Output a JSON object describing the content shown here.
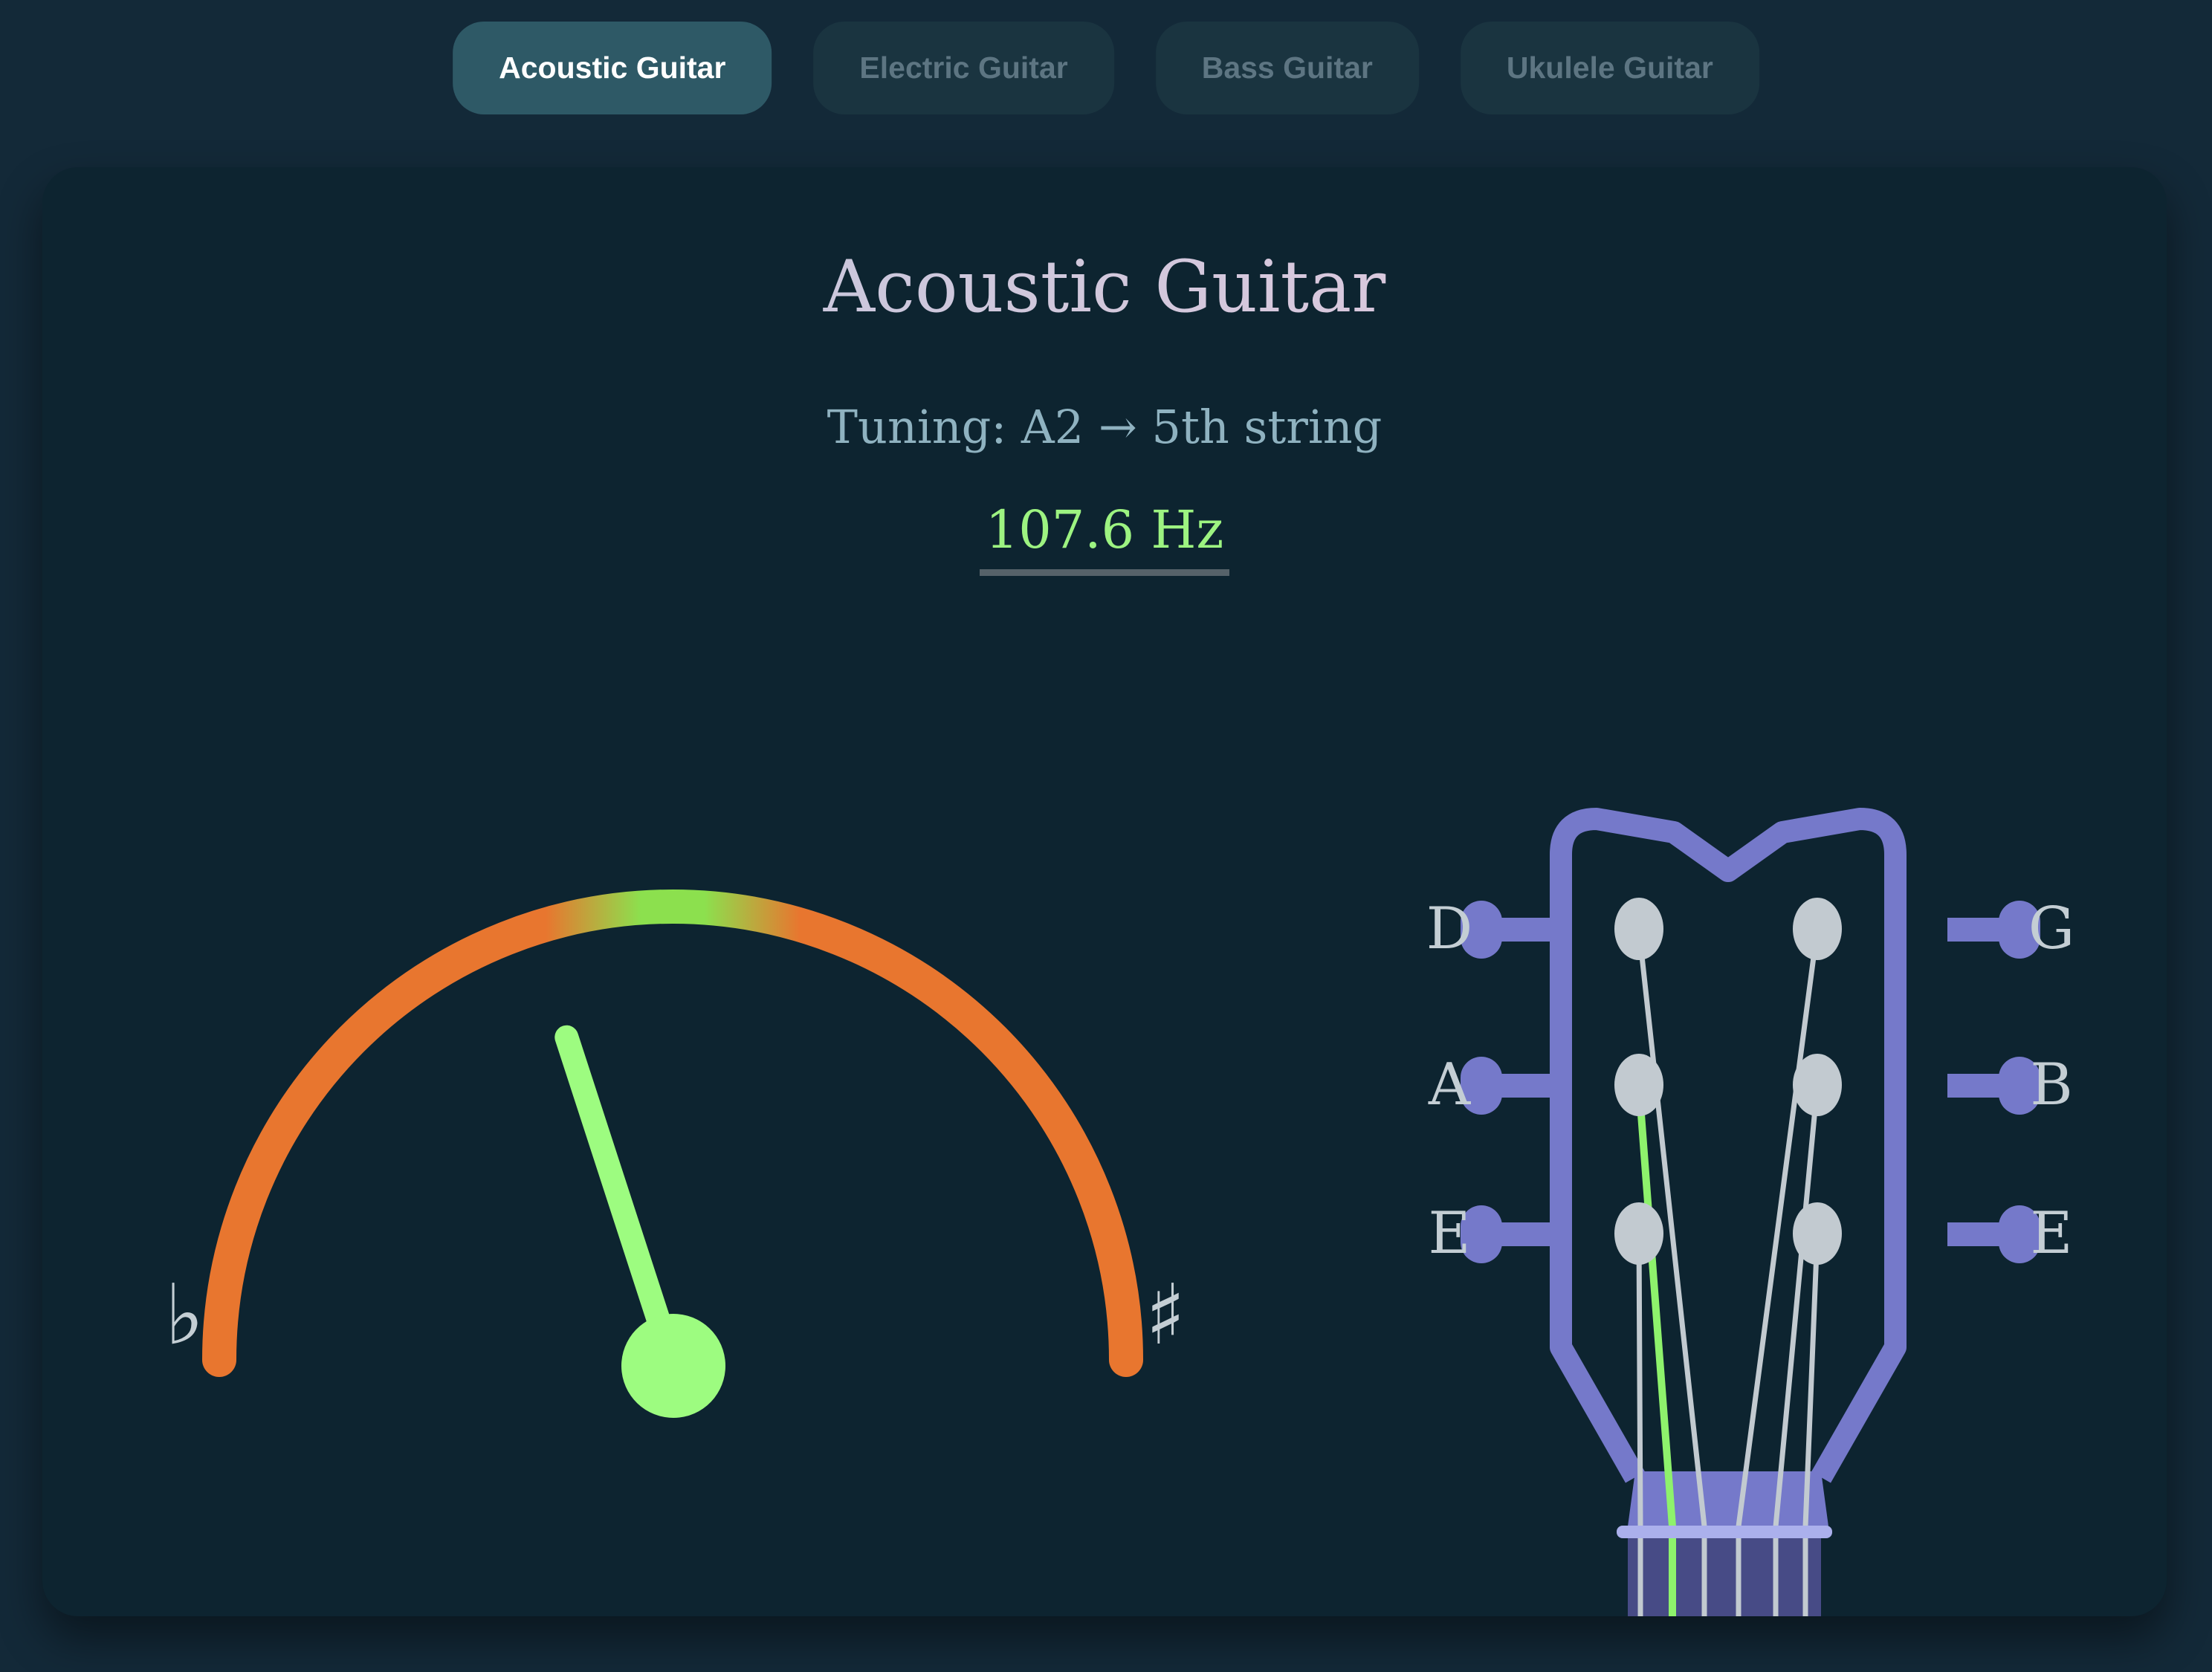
{
  "colors": {
    "page_bg": "#132938",
    "card_bg": "#0d2430",
    "tab_active_bg": "#2e5966",
    "tab_active_text": "#ffffff",
    "tab_inactive_bg": "#1a3440",
    "tab_inactive_text": "#5d7582",
    "title_grad_start": "#b7c6da",
    "title_grad_end": "#ecc9df",
    "subtitle_text": "#8fb2c0",
    "frequency_text": "#9df381",
    "frequency_underline": "#566269",
    "arc_orange": "#e8762f",
    "arc_green": "#8ce04e",
    "needle": "#9dfc80",
    "symbol_text": "#c4ced4",
    "headstock_purple": "#7579ca",
    "neck_fill": "#474b86",
    "nut_fill": "#abb0ec",
    "post_gray": "#c2cad0",
    "string_gray": "#c2cad0",
    "string_green": "#8ef26c",
    "label_text": "#c4ced4"
  },
  "tabs": {
    "items": [
      {
        "label": "Acoustic Guitar",
        "active": true
      },
      {
        "label": "Electric Guitar",
        "active": false
      },
      {
        "label": "Bass Guitar",
        "active": false
      },
      {
        "label": "Ukulele Guitar",
        "active": false
      }
    ]
  },
  "panel": {
    "title": "Acoustic Guitar",
    "subtitle": "Tuning: A2 → 5th string",
    "frequency": "107.6 Hz"
  },
  "gauge": {
    "flat_symbol": "♭",
    "sharp_symbol": "♯",
    "needle_angle_deg": -18
  },
  "headstock": {
    "left_labels": [
      "D",
      "A",
      "E"
    ],
    "right_labels": [
      "G",
      "B",
      "E"
    ],
    "highlighted_string": "A"
  }
}
